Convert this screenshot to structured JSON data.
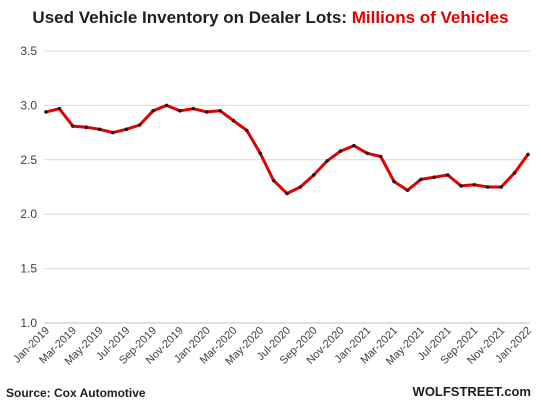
{
  "title_part1": "Used Vehicle Inventory on Dealer Lots: ",
  "title_part2": "Millions of Vehicles",
  "source": "Source: Cox Automotive",
  "watermark": "WOLFSTREET.com",
  "colors": {
    "line": "#e00000",
    "marker": "#1a1a1a",
    "grid": "#d9d9d9",
    "axis": "#bfbfbf",
    "text": "#404040"
  },
  "chart_data": {
    "type": "line",
    "title": "Used Vehicle Inventory on Dealer Lots: Millions of Vehicles",
    "xlabel": "",
    "ylabel": "",
    "ylim": [
      1.0,
      3.5
    ],
    "yticks": [
      1.0,
      1.5,
      2.0,
      2.5,
      3.0,
      3.5
    ],
    "grid": "horizontal",
    "legend": "none",
    "x": [
      "Jan-2019",
      "Feb-2019",
      "Mar-2019",
      "Apr-2019",
      "May-2019",
      "Jun-2019",
      "Jul-2019",
      "Aug-2019",
      "Sep-2019",
      "Oct-2019",
      "Nov-2019",
      "Dec-2019",
      "Jan-2020",
      "Feb-2020",
      "Mar-2020",
      "Apr-2020",
      "May-2020",
      "Jun-2020",
      "Jul-2020",
      "Aug-2020",
      "Sep-2020",
      "Oct-2020",
      "Nov-2020",
      "Dec-2020",
      "Jan-2021",
      "Feb-2021",
      "Mar-2021",
      "Apr-2021",
      "May-2021",
      "Jun-2021",
      "Jul-2021",
      "Aug-2021",
      "Sep-2021",
      "Oct-2021",
      "Nov-2021",
      "Dec-2021",
      "Jan-2022"
    ],
    "xtick_labels": [
      "Jan-2019",
      "Mar-2019",
      "May-2019",
      "Jul-2019",
      "Sep-2019",
      "Nov-2019",
      "Jan-2020",
      "Mar-2020",
      "May-2020",
      "Jul-2020",
      "Sep-2020",
      "Nov-2020",
      "Jan-2021",
      "Mar-2021",
      "May-2021",
      "Jul-2021",
      "Sep-2021",
      "Nov-2021",
      "Jan-2022"
    ],
    "series": [
      {
        "values": [
          2.94,
          2.97,
          2.81,
          2.8,
          2.78,
          2.75,
          2.78,
          2.82,
          2.95,
          3.0,
          2.95,
          2.97,
          2.94,
          2.95,
          2.86,
          2.77,
          2.56,
          2.31,
          2.19,
          2.25,
          2.36,
          2.49,
          2.58,
          2.63,
          2.56,
          2.53,
          2.3,
          2.22,
          2.32,
          2.34,
          2.36,
          2.26,
          2.27,
          2.25,
          2.25,
          2.38,
          2.55
        ]
      }
    ]
  }
}
